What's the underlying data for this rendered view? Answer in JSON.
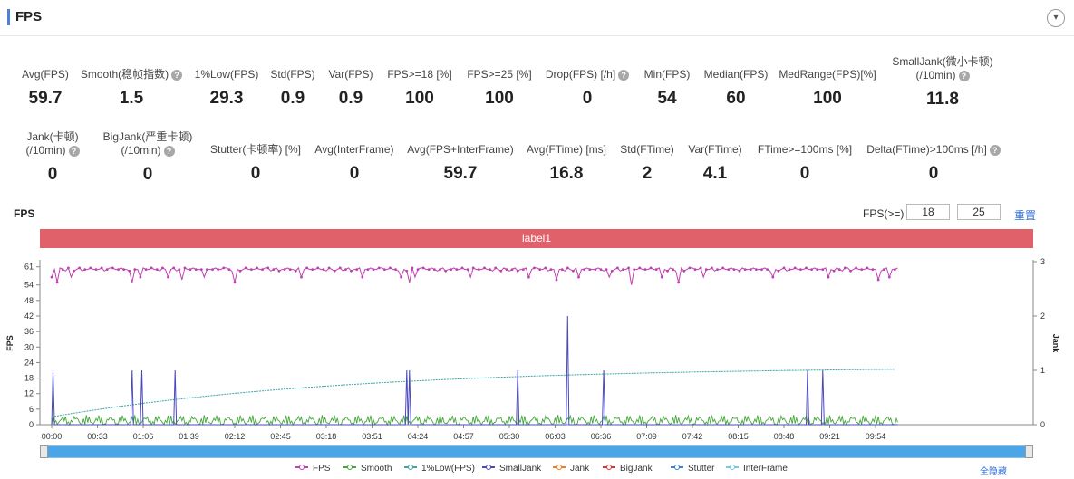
{
  "header": {
    "title": "FPS",
    "collapse_icon": "chevron-down-icon"
  },
  "metrics_row1": [
    {
      "label": "Avg(FPS)",
      "value": "59.7",
      "help": false
    },
    {
      "label": "Smooth(稳帧指数)",
      "value": "1.5",
      "help": true
    },
    {
      "label": "1%Low(FPS)",
      "value": "29.3",
      "help": false
    },
    {
      "label": "Std(FPS)",
      "value": "0.9",
      "help": false
    },
    {
      "label": "Var(FPS)",
      "value": "0.9",
      "help": false
    },
    {
      "label": "FPS>=18 [%]",
      "value": "100",
      "help": false
    },
    {
      "label": "FPS>=25 [%]",
      "value": "100",
      "help": false
    },
    {
      "label": "Drop(FPS) [/h]",
      "value": "0",
      "help": true
    },
    {
      "label": "Min(FPS)",
      "value": "54",
      "help": false
    },
    {
      "label": "Median(FPS)",
      "value": "60",
      "help": false
    },
    {
      "label": "MedRange(FPS)[%]",
      "value": "100",
      "help": false
    },
    {
      "label": "SmallJank(微小卡顿)",
      "label2": "(/10min)",
      "value": "11.8",
      "help": true
    }
  ],
  "metrics_row2": [
    {
      "label": "Jank(卡顿)",
      "label2": "(/10min)",
      "value": "0",
      "help": true
    },
    {
      "label": "BigJank(严重卡顿)",
      "label2": "(/10min)",
      "value": "0",
      "help": true
    },
    {
      "label": "Stutter(卡顿率) [%]",
      "value": "0",
      "help": false
    },
    {
      "label": "Avg(InterFrame)",
      "value": "0",
      "help": false
    },
    {
      "label": "Avg(FPS+InterFrame)",
      "value": "59.7",
      "help": false
    },
    {
      "label": "Avg(FTime) [ms]",
      "value": "16.8",
      "help": false
    },
    {
      "label": "Std(FTime)",
      "value": "2",
      "help": false
    },
    {
      "label": "Var(FTime)",
      "value": "4.1",
      "help": false
    },
    {
      "label": "FTime>=100ms [%]",
      "value": "0",
      "help": false
    },
    {
      "label": "Delta(FTime)>100ms [/h]",
      "value": "0",
      "help": true
    }
  ],
  "chart_section": {
    "title": "FPS",
    "filter_label": "FPS(>=)",
    "filter_value_1": "18",
    "filter_value_2": "25",
    "reset_label": "重置",
    "band_label": "label1",
    "hide_all_label": "全隐藏"
  },
  "chart_data": {
    "type": "line",
    "ylabel": "FPS",
    "y2label": "Jank",
    "ylim": [
      0,
      63
    ],
    "y2lim": [
      0,
      3
    ],
    "yticks": [
      0,
      6,
      12,
      18,
      24,
      30,
      36,
      42,
      48,
      54,
      61
    ],
    "y2ticks": [
      0,
      1,
      2,
      3
    ],
    "x_tick_labels": [
      "00:00",
      "00:33",
      "01:06",
      "01:39",
      "02:12",
      "02:45",
      "03:18",
      "03:51",
      "04:24",
      "04:57",
      "05:30",
      "06:03",
      "06:36",
      "07:09",
      "07:42",
      "08:15",
      "08:48",
      "09:21",
      "09:54"
    ],
    "x_range_seconds": [
      0,
      610
    ],
    "grid": true,
    "legend_position": "bottom",
    "series": [
      {
        "name": "FPS",
        "axis": "left",
        "color": "#c03fb3",
        "baseline": 60,
        "dips": [
          [
            1,
            57
          ],
          [
            4,
            55
          ],
          [
            14,
            57
          ],
          [
            58,
            55
          ],
          [
            65,
            57
          ],
          [
            85,
            57
          ],
          [
            95,
            56
          ],
          [
            111,
            57
          ],
          [
            132,
            55
          ],
          [
            180,
            57
          ],
          [
            225,
            57
          ],
          [
            253,
            57
          ],
          [
            258,
            55
          ],
          [
            262,
            57
          ],
          [
            303,
            57
          ],
          [
            345,
            57
          ],
          [
            365,
            56
          ],
          [
            380,
            57
          ],
          [
            403,
            57
          ],
          [
            418,
            54
          ],
          [
            440,
            57
          ],
          [
            452,
            55
          ],
          [
            470,
            57
          ],
          [
            520,
            57
          ],
          [
            560,
            57
          ],
          [
            596,
            56
          ],
          [
            605,
            57
          ]
        ]
      },
      {
        "name": "Smooth",
        "axis": "right",
        "color": "#44a63a",
        "note": "low-amplitude noise near 0"
      },
      {
        "name": "1%Low(FPS)",
        "axis": "left",
        "color": "#3aa6a6",
        "note": "rises from ~3 to ~22"
      },
      {
        "name": "SmallJank",
        "axis": "right",
        "color": "#4848c0",
        "spikes": [
          [
            1,
            1
          ],
          [
            58,
            1
          ],
          [
            65,
            1
          ],
          [
            89,
            1
          ],
          [
            256,
            1
          ],
          [
            258,
            1
          ],
          [
            336,
            1
          ],
          [
            372,
            2
          ],
          [
            398,
            1
          ],
          [
            545,
            1
          ],
          [
            556,
            1
          ]
        ]
      },
      {
        "name": "Jank",
        "axis": "right",
        "color": "#f07c28"
      },
      {
        "name": "BigJank",
        "axis": "right",
        "color": "#d9352d"
      },
      {
        "name": "Stutter",
        "axis": "right",
        "color": "#3c7fd0"
      },
      {
        "name": "InterFrame",
        "axis": "right",
        "color": "#78c8e8"
      }
    ]
  }
}
